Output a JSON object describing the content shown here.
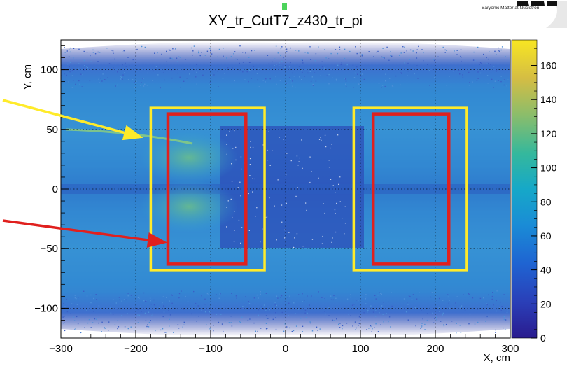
{
  "logo": {
    "text": "Baryonic Matter at Nuclotron"
  },
  "chart_data": {
    "type": "heatmap",
    "title": "XY_tr_CutT7_z430_tr_pi",
    "xlabel": "X, cm",
    "ylabel": "Y, cm",
    "xlim": [
      -300,
      300
    ],
    "ylim": [
      -125,
      125
    ],
    "xticks": [
      -300,
      -200,
      -100,
      0,
      100,
      200,
      300
    ],
    "yticks": [
      -100,
      -50,
      0,
      50,
      100
    ],
    "zlim": [
      0,
      175
    ],
    "zticks": [
      0,
      20,
      40,
      60,
      80,
      100,
      120,
      140,
      160
    ],
    "grid": true,
    "colorbar": "right",
    "annotations": {
      "yellow_boxes": [
        {
          "x0": -180,
          "x1": -28,
          "y0": -68,
          "y1": 68
        },
        {
          "x0": 91,
          "x1": 242,
          "y0": -68,
          "y1": 68
        }
      ],
      "red_boxes": [
        {
          "x0": -157,
          "x1": -53,
          "y0": -63,
          "y1": 63
        },
        {
          "x0": 117,
          "x1": 218,
          "y0": -63,
          "y1": 63
        }
      ],
      "arrows": [
        {
          "color": "yellow",
          "target": [
            -190,
            43
          ]
        },
        {
          "color": "red",
          "target": [
            -158,
            -45
          ]
        }
      ]
    },
    "colors": {
      "yellow_box": "#ffeb2a",
      "red_box": "#e0201e",
      "background": "#3f66c8",
      "band": "#2f93d4"
    }
  }
}
